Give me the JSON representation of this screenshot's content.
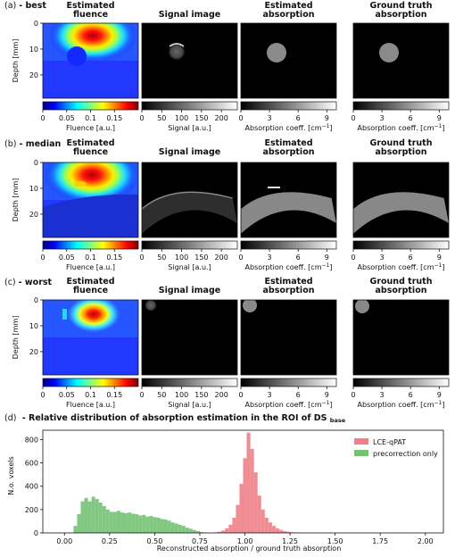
{
  "rows": [
    {
      "tag": "(a)",
      "name": "- best",
      "roi": "circle"
    },
    {
      "tag": "(b)",
      "name": "- median",
      "roi": "band"
    },
    {
      "tag": "(c)",
      "name": "- worst",
      "roi": "spot"
    }
  ],
  "column_titles": [
    {
      "l1": "Estimated",
      "l2": "fluence"
    },
    {
      "l1": "Signal image",
      "l2": ""
    },
    {
      "l1": "Estimated",
      "l2": "absorption"
    },
    {
      "l1": "Ground truth",
      "l2": "absorption"
    }
  ],
  "y_axis": {
    "label": "Depth [mm]",
    "ticks": [
      "0",
      "10",
      "20"
    ],
    "values": [
      0,
      10,
      20
    ],
    "max": 29
  },
  "colorbars": [
    {
      "label": "Fluence [a.u.]",
      "ticks": [
        "0",
        "0.05",
        "0.1",
        "0.15"
      ],
      "values": [
        0,
        0.05,
        0.1,
        0.15
      ],
      "max": 0.2,
      "cmap": "jet"
    },
    {
      "label": "Signal [a.u.]",
      "ticks": [
        "0",
        "50",
        "100",
        "150",
        "200"
      ],
      "values": [
        0,
        50,
        100,
        150,
        200
      ],
      "max": 240,
      "cmap": "gray"
    },
    {
      "label_prefix": "Absorption coeff. [cm",
      "label_sup": "−1",
      "label_suffix": "]",
      "ticks": [
        "0",
        "3",
        "6",
        "9"
      ],
      "values": [
        0,
        3,
        6,
        9
      ],
      "max": 10,
      "cmap": "gray"
    },
    {
      "label_prefix": "Absorption coeff. [cm",
      "label_sup": "−1",
      "label_suffix": "]",
      "ticks": [
        "0",
        "3",
        "6",
        "9"
      ],
      "values": [
        0,
        3,
        6,
        9
      ],
      "max": 10,
      "cmap": "gray"
    }
  ],
  "hist_title": {
    "tag": "(d)",
    "text": "- Relative distribution of absorption estimation in the ROI of DS",
    "sub": "base"
  },
  "colors": {
    "red": "#f07f86",
    "green": "#74c274"
  },
  "chart_data": {
    "type": "bar",
    "xlabel": "Reconstructed absorption / ground truth absorption",
    "ylabel": "N.o. voxels",
    "xlim": [
      -0.12,
      2.1
    ],
    "ylim": [
      0,
      880
    ],
    "xticks": [
      "0.00",
      "0.25",
      "0.50",
      "0.75",
      "1.00",
      "1.25",
      "1.50",
      "1.75",
      "2.00"
    ],
    "xtick_values": [
      0,
      0.25,
      0.5,
      0.75,
      1.0,
      1.25,
      1.5,
      1.75,
      2.0
    ],
    "yticks": [
      "0",
      "200",
      "400",
      "600",
      "800"
    ],
    "ytick_values": [
      0,
      200,
      400,
      600,
      800
    ],
    "bin_width": 0.02,
    "legend_position": "top-right",
    "series": [
      {
        "name": "LCE-qPAT",
        "color": "#f07f86",
        "bins": [
          0.84,
          0.86,
          0.88,
          0.9,
          0.92,
          0.94,
          0.96,
          0.98,
          1.0,
          1.02,
          1.04,
          1.06,
          1.08,
          1.1,
          1.12,
          1.14,
          1.16,
          1.18,
          1.2,
          1.22,
          1.24,
          1.26,
          1.28,
          1.3
        ],
        "values": [
          5,
          10,
          20,
          40,
          70,
          130,
          240,
          420,
          640,
          860,
          720,
          520,
          320,
          200,
          130,
          90,
          60,
          40,
          25,
          15,
          10,
          6,
          4,
          2
        ]
      },
      {
        "name": "precorrection only",
        "color": "#74c274",
        "bins": [
          0.06,
          0.08,
          0.1,
          0.12,
          0.14,
          0.16,
          0.18,
          0.2,
          0.22,
          0.24,
          0.26,
          0.28,
          0.3,
          0.32,
          0.34,
          0.36,
          0.38,
          0.4,
          0.42,
          0.44,
          0.46,
          0.48,
          0.5,
          0.52,
          0.54,
          0.56,
          0.58,
          0.6,
          0.62,
          0.64,
          0.66,
          0.68,
          0.7,
          0.72,
          0.74,
          0.76,
          0.78
        ],
        "values": [
          60,
          160,
          270,
          300,
          270,
          310,
          290,
          260,
          230,
          200,
          180,
          180,
          190,
          175,
          170,
          175,
          165,
          160,
          150,
          155,
          140,
          145,
          135,
          130,
          120,
          115,
          105,
          90,
          80,
          70,
          60,
          45,
          35,
          25,
          15,
          8,
          4
        ]
      }
    ]
  }
}
